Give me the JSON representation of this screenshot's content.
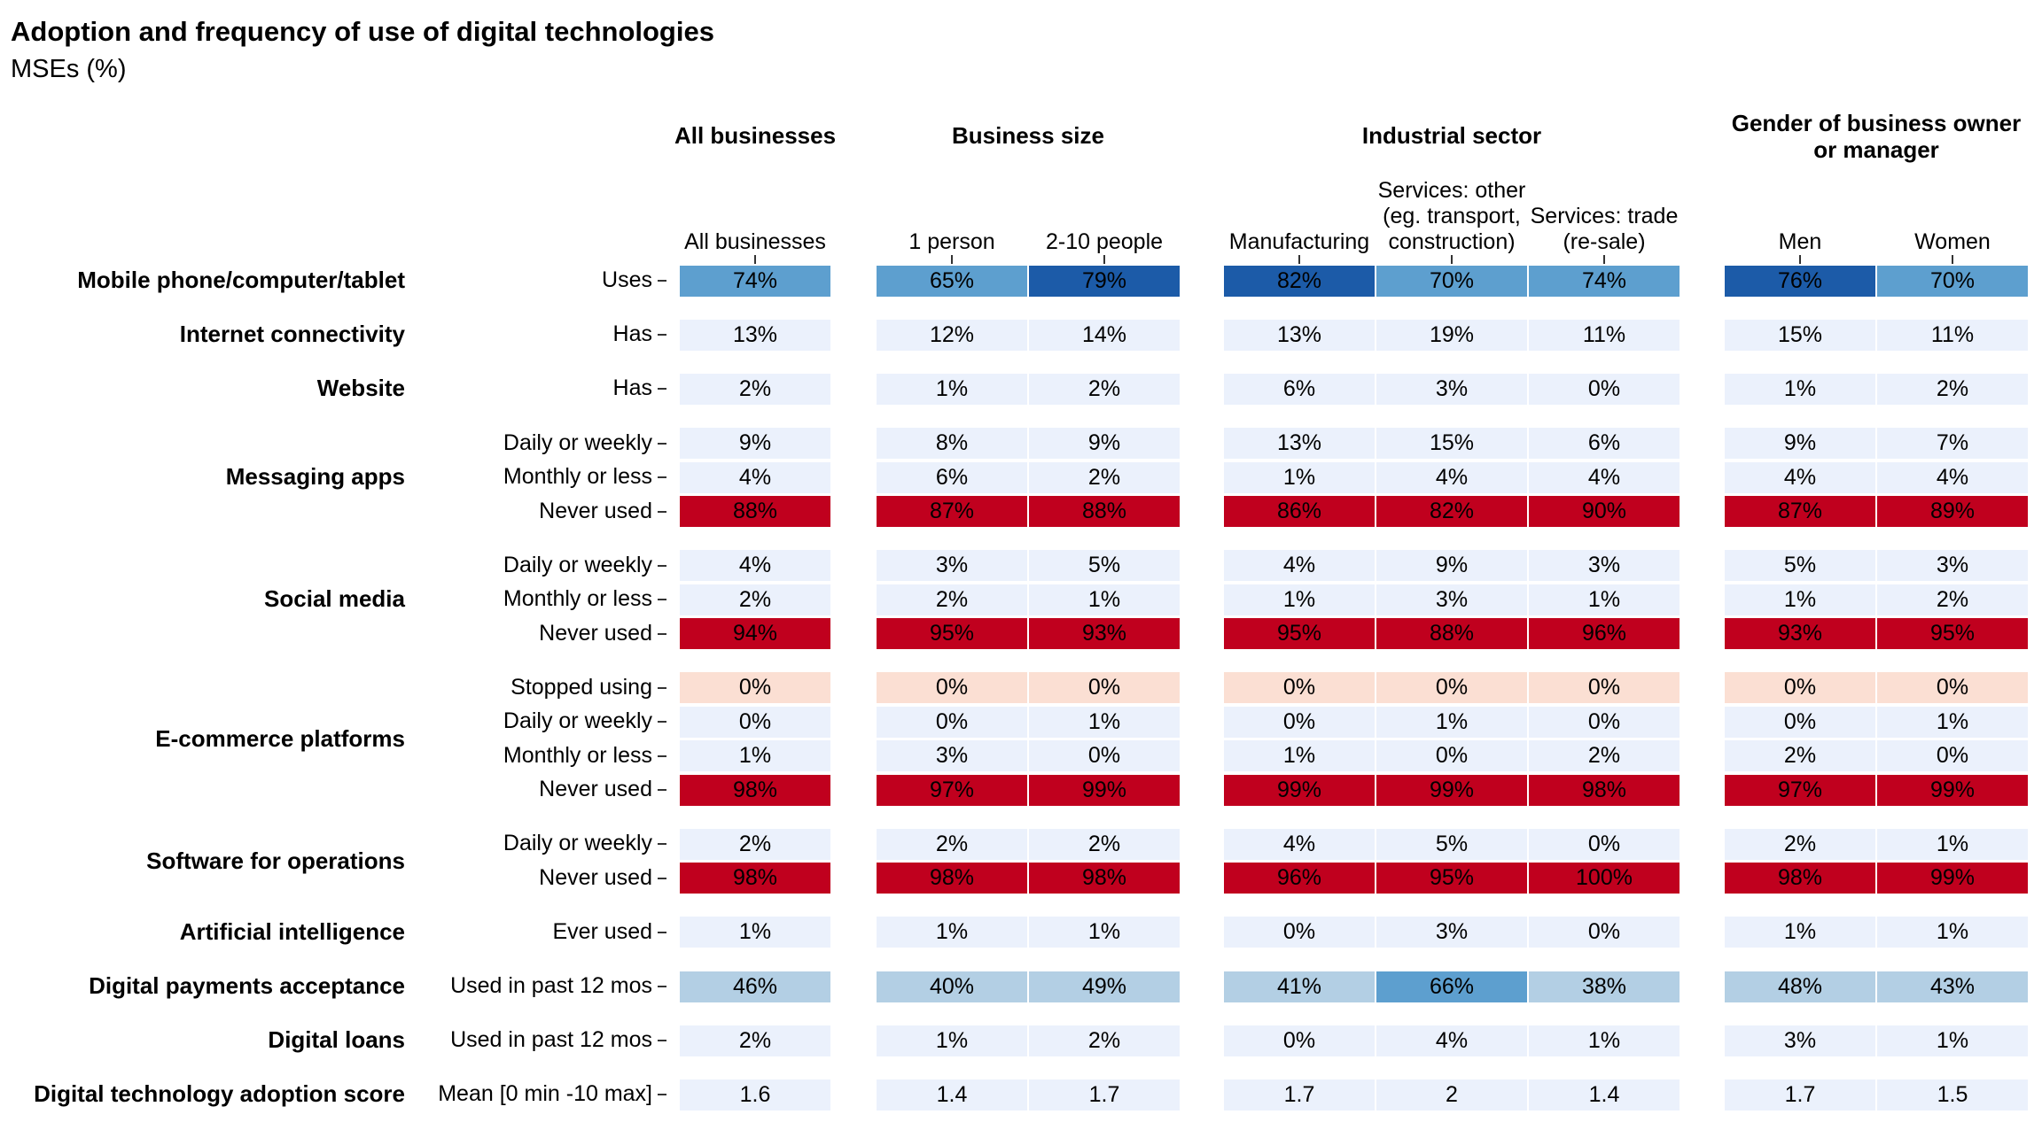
{
  "chart_data": {
    "type": "heatmap",
    "title": "Adoption and frequency of use of digital technologies",
    "subtitle": "MSEs (%)",
    "groups": [
      {
        "label": "All businesses",
        "columns": [
          "All businesses"
        ]
      },
      {
        "label": "Business size",
        "columns": [
          "1 person",
          "2-10 people"
        ]
      },
      {
        "label": "Industrial sector",
        "columns": [
          "Manufacturing",
          "Services: other\n(eg. transport,\nconstruction)",
          "Services: trade\n(re-sale)"
        ]
      },
      {
        "label": "Gender of business owner\nor manager",
        "columns": [
          "Men",
          "Women"
        ]
      }
    ],
    "categories": [
      {
        "label": "Mobile phone/computer/tablet",
        "rows": [
          {
            "label": "Uses",
            "type": "adopt",
            "values": [
              "74%",
              "65%",
              "79%",
              "82%",
              "70%",
              "74%",
              "76%",
              "70%"
            ]
          }
        ]
      },
      {
        "label": "Internet connectivity",
        "rows": [
          {
            "label": "Has",
            "type": "adopt",
            "values": [
              "13%",
              "12%",
              "14%",
              "13%",
              "19%",
              "11%",
              "15%",
              "11%"
            ]
          }
        ]
      },
      {
        "label": "Website",
        "rows": [
          {
            "label": "Has",
            "type": "adopt",
            "values": [
              "2%",
              "1%",
              "2%",
              "6%",
              "3%",
              "0%",
              "1%",
              "2%"
            ]
          }
        ]
      },
      {
        "label": "Messaging apps",
        "rows": [
          {
            "label": "Daily or weekly",
            "type": "adopt",
            "values": [
              "9%",
              "8%",
              "9%",
              "13%",
              "15%",
              "6%",
              "9%",
              "7%"
            ]
          },
          {
            "label": "Monthly or less",
            "type": "adopt",
            "values": [
              "4%",
              "6%",
              "2%",
              "1%",
              "4%",
              "4%",
              "4%",
              "4%"
            ]
          },
          {
            "label": "Never used",
            "type": "never",
            "values": [
              "88%",
              "87%",
              "88%",
              "86%",
              "82%",
              "90%",
              "87%",
              "89%"
            ]
          }
        ]
      },
      {
        "label": "Social media",
        "rows": [
          {
            "label": "Daily or weekly",
            "type": "adopt",
            "values": [
              "4%",
              "3%",
              "5%",
              "4%",
              "9%",
              "3%",
              "5%",
              "3%"
            ]
          },
          {
            "label": "Monthly or less",
            "type": "adopt",
            "values": [
              "2%",
              "2%",
              "1%",
              "1%",
              "3%",
              "1%",
              "1%",
              "2%"
            ]
          },
          {
            "label": "Never used",
            "type": "never",
            "values": [
              "94%",
              "95%",
              "93%",
              "95%",
              "88%",
              "96%",
              "93%",
              "95%"
            ]
          }
        ]
      },
      {
        "label": "E-commerce platforms",
        "rows": [
          {
            "label": "Stopped using",
            "type": "stopped",
            "values": [
              "0%",
              "0%",
              "0%",
              "0%",
              "0%",
              "0%",
              "0%",
              "0%"
            ]
          },
          {
            "label": "Daily or weekly",
            "type": "adopt",
            "values": [
              "0%",
              "0%",
              "1%",
              "0%",
              "1%",
              "0%",
              "0%",
              "1%"
            ]
          },
          {
            "label": "Monthly or less",
            "type": "adopt",
            "values": [
              "1%",
              "3%",
              "0%",
              "1%",
              "0%",
              "2%",
              "2%",
              "0%"
            ]
          },
          {
            "label": "Never used",
            "type": "never",
            "values": [
              "98%",
              "97%",
              "99%",
              "99%",
              "99%",
              "98%",
              "97%",
              "99%"
            ]
          }
        ]
      },
      {
        "label": "Software for operations",
        "rows": [
          {
            "label": "Daily or weekly",
            "type": "adopt",
            "values": [
              "2%",
              "2%",
              "2%",
              "4%",
              "5%",
              "0%",
              "2%",
              "1%"
            ]
          },
          {
            "label": "Never used",
            "type": "never",
            "values": [
              "98%",
              "98%",
              "98%",
              "96%",
              "95%",
              "100%",
              "98%",
              "99%"
            ]
          }
        ]
      },
      {
        "label": "Artificial intelligence",
        "rows": [
          {
            "label": "Ever used",
            "type": "adopt",
            "values": [
              "1%",
              "1%",
              "1%",
              "0%",
              "3%",
              "0%",
              "1%",
              "1%"
            ]
          }
        ]
      },
      {
        "label": "Digital payments acceptance",
        "rows": [
          {
            "label": "Used in past 12 mos",
            "type": "adopt",
            "values": [
              "46%",
              "40%",
              "49%",
              "41%",
              "66%",
              "38%",
              "48%",
              "43%"
            ]
          }
        ]
      },
      {
        "label": "Digital loans",
        "rows": [
          {
            "label": "Used in past 12 mos",
            "type": "adopt",
            "values": [
              "2%",
              "1%",
              "2%",
              "0%",
              "4%",
              "1%",
              "3%",
              "1%"
            ]
          }
        ]
      },
      {
        "label": "Digital technology adoption score",
        "rows": [
          {
            "label": "Mean [0 min -10 max]",
            "type": "score",
            "values": [
              "1.6",
              "1.4",
              "1.7",
              "1.7",
              "2",
              "1.4",
              "1.7",
              "1.5"
            ]
          }
        ]
      }
    ],
    "colors": {
      "adopt_low": "#ebf1fc",
      "adopt_mid1": "#b3cfe4",
      "adopt_mid2": "#5d9fcf",
      "adopt_high": "#1c5ba8",
      "never": "#c0001e",
      "stopped": "#fbdfd3"
    }
  }
}
